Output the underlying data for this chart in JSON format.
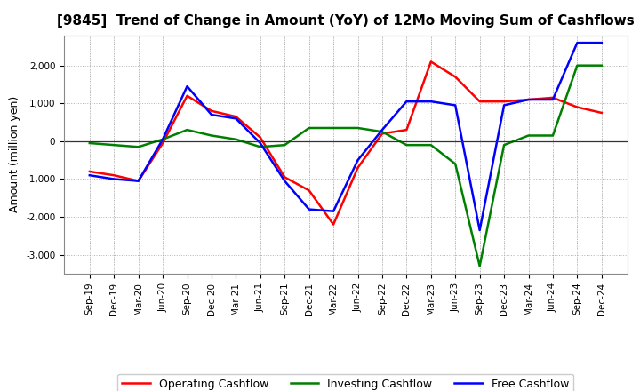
{
  "title": "[9845]  Trend of Change in Amount (YoY) of 12Mo Moving Sum of Cashflows",
  "ylabel": "Amount (million yen)",
  "x_labels": [
    "Sep-19",
    "Dec-19",
    "Mar-20",
    "Jun-20",
    "Sep-20",
    "Dec-20",
    "Mar-21",
    "Jun-21",
    "Sep-21",
    "Dec-21",
    "Mar-22",
    "Jun-22",
    "Sep-22",
    "Dec-22",
    "Mar-23",
    "Jun-23",
    "Sep-23",
    "Dec-23",
    "Mar-24",
    "Jun-24",
    "Sep-24",
    "Dec-24"
  ],
  "operating": [
    -800,
    -900,
    -1050,
    -50,
    1200,
    800,
    650,
    100,
    -950,
    -1300,
    -2200,
    -700,
    200,
    300,
    2100,
    1700,
    1050,
    1050,
    1100,
    1150,
    900,
    750
  ],
  "investing": [
    -50,
    -100,
    -150,
    50,
    300,
    150,
    50,
    -150,
    -100,
    350,
    350,
    350,
    250,
    -100,
    -100,
    -600,
    -3300,
    -100,
    150,
    150,
    2000,
    2000
  ],
  "free": [
    -900,
    -1000,
    -1050,
    50,
    1450,
    700,
    600,
    -50,
    -1050,
    -1800,
    -1850,
    -500,
    300,
    1050,
    1050,
    950,
    -2350,
    950,
    1100,
    1100,
    2600,
    2600
  ],
  "operating_color": "#ff0000",
  "investing_color": "#008000",
  "free_color": "#0000ff",
  "bg_color": "#ffffff",
  "plot_bg_color": "#ffffff",
  "grid_color": "#aaaaaa",
  "ylim": [
    -3500,
    2800
  ],
  "yticks": [
    -3000,
    -2000,
    -1000,
    0,
    1000,
    2000
  ],
  "legend_labels": [
    "Operating Cashflow",
    "Investing Cashflow",
    "Free Cashflow"
  ],
  "line_width": 1.8,
  "title_fontsize": 11,
  "tick_fontsize": 7.5,
  "ylabel_fontsize": 9
}
